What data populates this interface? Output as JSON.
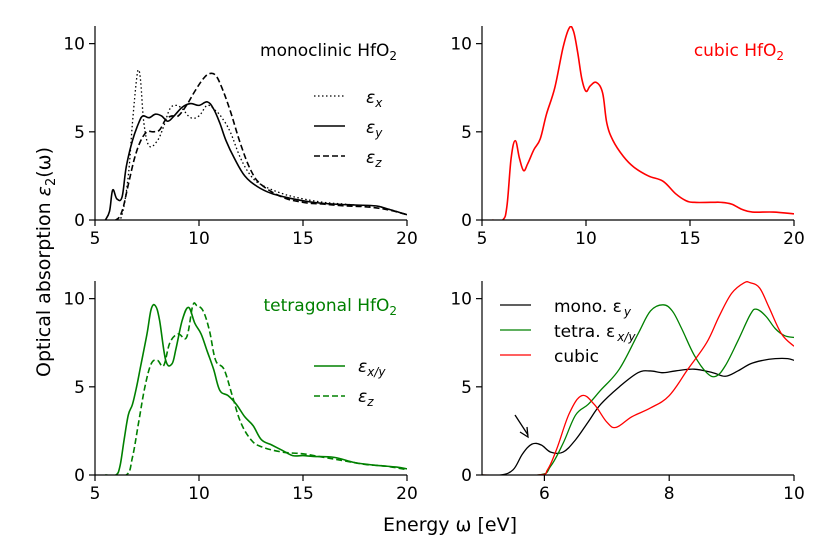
{
  "figure": {
    "ylabel_main": "Optical absorption ",
    "ylabel_eps": "ε",
    "ylabel_sub": "2",
    "ylabel_arg": "(ω)",
    "xlabel": "Energy ω [eV]"
  },
  "chart_data": [
    {
      "id": "mono",
      "type": "line",
      "title": "monoclinic HfO",
      "title_sub": "2",
      "title_color": "#000000",
      "xlim": [
        5,
        20
      ],
      "ylim": [
        0,
        11
      ],
      "xticks": [
        5,
        10,
        15,
        20
      ],
      "yticks": [
        0,
        5,
        10
      ],
      "legend_position": "right",
      "series": [
        {
          "name": "ε",
          "sub": "x",
          "color": "#000000",
          "dash": "1.5,2.5",
          "width": 1.3,
          "x": [
            5.5,
            6.0,
            6.3,
            6.6,
            6.8,
            7.0,
            7.1,
            7.2,
            7.35,
            7.6,
            8.0,
            8.3,
            8.6,
            8.9,
            9.2,
            9.6,
            10.0,
            10.4,
            10.8,
            11.1,
            11.5,
            12.0,
            12.5,
            13.0,
            14.0,
            15.0,
            16.0,
            17.0,
            18.0,
            18.5,
            19.0,
            20.0
          ],
          "y": [
            0,
            0,
            0.3,
            2.5,
            5.5,
            8.0,
            8.5,
            7.8,
            5.5,
            4.2,
            4.5,
            5.3,
            6.3,
            6.5,
            6.3,
            5.8,
            5.9,
            6.5,
            6.2,
            5.8,
            5.0,
            3.5,
            2.5,
            2.0,
            1.5,
            1.2,
            1.0,
            0.9,
            0.8,
            0.8,
            0.65,
            0.3
          ]
        },
        {
          "name": "ε",
          "sub": "y",
          "color": "#000000",
          "dash": "",
          "width": 1.6,
          "x": [
            5.5,
            5.7,
            5.85,
            6.05,
            6.3,
            6.5,
            6.8,
            7.1,
            7.3,
            7.6,
            7.9,
            8.2,
            8.5,
            8.8,
            9.2,
            9.6,
            10.0,
            10.4,
            10.7,
            11.0,
            11.3,
            11.7,
            12.2,
            12.8,
            13.5,
            14.5,
            15.5,
            16.5,
            17.5,
            18.5,
            19.0,
            20.0
          ],
          "y": [
            0,
            0.5,
            1.7,
            1.2,
            1.3,
            3.0,
            4.5,
            5.5,
            5.9,
            5.8,
            6.0,
            5.9,
            5.6,
            5.9,
            6.4,
            6.6,
            6.5,
            6.7,
            6.3,
            5.5,
            4.5,
            3.5,
            2.5,
            1.9,
            1.5,
            1.2,
            1.0,
            0.9,
            0.85,
            0.8,
            0.65,
            0.3
          ]
        },
        {
          "name": "ε",
          "sub": "z",
          "color": "#000000",
          "dash": "6,3",
          "width": 1.6,
          "x": [
            5.5,
            6.0,
            6.3,
            6.6,
            6.9,
            7.2,
            7.5,
            7.8,
            8.1,
            8.4,
            8.7,
            9.0,
            9.4,
            9.8,
            10.2,
            10.5,
            10.8,
            11.1,
            11.5,
            12.0,
            12.5,
            13.0,
            14.0,
            15.0,
            16.0,
            17.0,
            18.0,
            19.0,
            20.0
          ],
          "y": [
            0,
            0,
            0.5,
            2.0,
            3.5,
            4.5,
            5.0,
            5.0,
            5.1,
            5.7,
            5.9,
            5.9,
            6.5,
            7.3,
            8.0,
            8.3,
            8.2,
            7.5,
            6.2,
            4.3,
            2.8,
            2.0,
            1.3,
            1.0,
            0.9,
            0.8,
            0.75,
            0.6,
            0.3
          ]
        }
      ]
    },
    {
      "id": "cubic",
      "type": "line",
      "title": "cubic HfO",
      "title_sub": "2",
      "title_color": "#ff0000",
      "xlim": [
        5,
        20
      ],
      "ylim": [
        0,
        11
      ],
      "xticks": [
        5,
        10,
        15,
        20
      ],
      "yticks": [
        0,
        5,
        10
      ],
      "series": [
        {
          "name": "cubic",
          "color": "#ff0000",
          "dash": "",
          "width": 1.6,
          "x": [
            5.5,
            6.0,
            6.2,
            6.4,
            6.6,
            6.8,
            7.0,
            7.2,
            7.5,
            7.8,
            8.1,
            8.5,
            8.9,
            9.2,
            9.4,
            9.6,
            9.8,
            10.0,
            10.2,
            10.5,
            10.8,
            11.0,
            11.3,
            11.8,
            12.3,
            13.0,
            13.7,
            14.3,
            14.8,
            15.2,
            16.0,
            16.5,
            17.0,
            17.5,
            18.0,
            19.0,
            20.0
          ],
          "y": [
            0,
            0,
            0.8,
            3.5,
            4.5,
            3.5,
            2.8,
            3.2,
            4.0,
            4.6,
            6.0,
            7.5,
            9.8,
            10.9,
            10.7,
            9.5,
            8.0,
            7.3,
            7.6,
            7.8,
            7.2,
            5.5,
            4.5,
            3.6,
            3.0,
            2.5,
            2.2,
            1.5,
            1.1,
            1.0,
            1.0,
            1.0,
            0.9,
            0.6,
            0.45,
            0.45,
            0.35
          ]
        }
      ]
    },
    {
      "id": "tetra",
      "type": "line",
      "title": "tetragonal HfO",
      "title_sub": "2",
      "title_color": "#008000",
      "xlim": [
        5,
        20
      ],
      "ylim": [
        0,
        11
      ],
      "xticks": [
        5,
        10,
        15,
        20
      ],
      "yticks": [
        0,
        5,
        10
      ],
      "legend_position": "right",
      "series": [
        {
          "name": "ε",
          "sub": "x/y",
          "color": "#008000",
          "dash": "",
          "width": 1.6,
          "x": [
            5.5,
            6.0,
            6.2,
            6.4,
            6.6,
            6.8,
            7.0,
            7.2,
            7.5,
            7.7,
            7.9,
            8.1,
            8.4,
            8.7,
            8.9,
            9.2,
            9.5,
            9.8,
            10.1,
            10.4,
            10.7,
            11.0,
            11.4,
            11.8,
            12.2,
            12.6,
            13.0,
            13.5,
            14.0,
            14.5,
            15.0,
            15.5,
            16.5,
            17.5,
            18.5,
            19.5,
            20.0
          ],
          "y": [
            0,
            0,
            0.5,
            2.0,
            3.4,
            4.0,
            5.0,
            6.2,
            8.0,
            9.4,
            9.6,
            8.8,
            6.5,
            6.3,
            7.2,
            8.8,
            9.5,
            8.6,
            8.0,
            7.0,
            6.0,
            4.8,
            4.5,
            4.0,
            3.3,
            2.8,
            2.0,
            1.7,
            1.4,
            1.1,
            1.1,
            1.05,
            1.0,
            0.7,
            0.55,
            0.45,
            0.35
          ]
        },
        {
          "name": "ε",
          "sub": "z",
          "color": "#008000",
          "dash": "6,3",
          "width": 1.6,
          "x": [
            5.5,
            6.5,
            6.8,
            7.1,
            7.4,
            7.7,
            8.0,
            8.3,
            8.6,
            9.0,
            9.4,
            9.7,
            9.9,
            10.2,
            10.5,
            10.8,
            11.2,
            11.6,
            12.0,
            12.5,
            13.0,
            14.0,
            15.0,
            16.0,
            17.0,
            18.0,
            19.0,
            20.0
          ],
          "y": [
            0,
            0,
            1.0,
            3.0,
            5.0,
            6.3,
            6.5,
            6.2,
            7.5,
            8.0,
            7.8,
            9.6,
            9.6,
            9.3,
            8.2,
            6.5,
            6.0,
            4.5,
            3.0,
            2.0,
            1.6,
            1.3,
            1.2,
            1.0,
            0.8,
            0.6,
            0.5,
            0.3
          ]
        }
      ]
    },
    {
      "id": "compare",
      "type": "line",
      "title": "",
      "xlim": [
        5,
        10
      ],
      "ylim": [
        0,
        11
      ],
      "xticks": [
        6,
        8,
        10
      ],
      "yticks": [
        0,
        5,
        10
      ],
      "legend_position": "top-left",
      "annotation": "arrow pointing at 5.85 eV peak",
      "series": [
        {
          "name": "mono. ε",
          "sub": "y",
          "color": "#000000",
          "dash": "",
          "width": 1.3,
          "x": [
            5.0,
            5.3,
            5.5,
            5.65,
            5.8,
            5.95,
            6.1,
            6.3,
            6.5,
            6.7,
            6.9,
            7.2,
            7.5,
            7.7,
            7.9,
            8.1,
            8.4,
            8.7,
            8.9,
            9.1,
            9.3,
            9.5,
            9.7,
            9.9,
            10.0
          ],
          "y": [
            0,
            0,
            0.3,
            1.2,
            1.75,
            1.7,
            1.3,
            1.3,
            2.0,
            3.0,
            4.0,
            5.0,
            5.8,
            5.9,
            5.8,
            5.9,
            6.0,
            5.8,
            5.6,
            5.9,
            6.3,
            6.5,
            6.6,
            6.6,
            6.5
          ]
        },
        {
          "name": "tetra. ε",
          "sub": "x/y",
          "color": "#008000",
          "dash": "",
          "width": 1.3,
          "x": [
            5.0,
            5.9,
            6.1,
            6.3,
            6.5,
            6.7,
            6.9,
            7.2,
            7.5,
            7.7,
            7.9,
            8.05,
            8.2,
            8.4,
            8.6,
            8.75,
            8.9,
            9.1,
            9.3,
            9.4,
            9.55,
            9.7,
            9.85,
            10.0
          ],
          "y": [
            0,
            0,
            0.5,
            1.8,
            3.4,
            4.0,
            4.8,
            6.0,
            8.0,
            9.3,
            9.65,
            9.3,
            8.3,
            6.8,
            5.8,
            5.6,
            6.2,
            7.6,
            9.1,
            9.4,
            9.0,
            8.3,
            7.9,
            7.8
          ]
        },
        {
          "name": "cubic",
          "color": "#ff0000",
          "dash": "",
          "width": 1.3,
          "x": [
            5.0,
            5.9,
            6.05,
            6.2,
            6.4,
            6.6,
            6.8,
            7.0,
            7.15,
            7.4,
            7.7,
            8.0,
            8.3,
            8.6,
            8.8,
            9.0,
            9.2,
            9.3,
            9.45,
            9.6,
            9.8,
            10.0
          ],
          "y": [
            0,
            0,
            0.3,
            1.5,
            3.5,
            4.5,
            4.0,
            3.0,
            2.7,
            3.3,
            3.8,
            4.5,
            6.0,
            7.5,
            9.0,
            10.3,
            10.9,
            10.9,
            10.6,
            9.5,
            8.0,
            7.3
          ]
        }
      ]
    }
  ]
}
